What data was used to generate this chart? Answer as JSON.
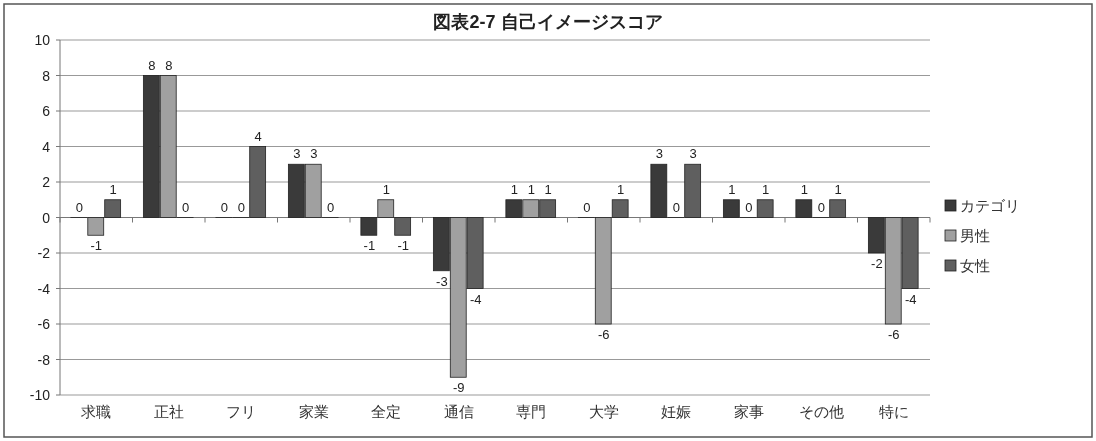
{
  "chart_data": {
    "type": "bar",
    "title": "図表2-7  自己イメージスコア",
    "categories": [
      "求職",
      "正社",
      "フリ",
      "家業",
      "全定",
      "通信",
      "専門",
      "大学",
      "妊娠",
      "家事",
      "その他",
      "特に"
    ],
    "series": [
      {
        "name": "カテゴリ",
        "color": "#3a3a3a",
        "values": [
          0,
          8,
          0,
          3,
          -1,
          -3,
          1,
          0,
          3,
          1,
          1,
          -2
        ]
      },
      {
        "name": "男性",
        "color": "#a0a0a0",
        "values": [
          -1,
          8,
          0,
          3,
          1,
          -9,
          1,
          -6,
          0,
          0,
          0,
          -6
        ]
      },
      {
        "name": "女性",
        "color": "#5f5f5f",
        "values": [
          1,
          0,
          4,
          0,
          -1,
          -4,
          1,
          1,
          3,
          1,
          1,
          -4
        ]
      }
    ],
    "ylim": [
      -10,
      10
    ],
    "yticks": [
      -10,
      -8,
      -6,
      -4,
      -2,
      0,
      2,
      4,
      6,
      8,
      10
    ],
    "grid": "y",
    "legend": "right",
    "data_labels": true
  }
}
